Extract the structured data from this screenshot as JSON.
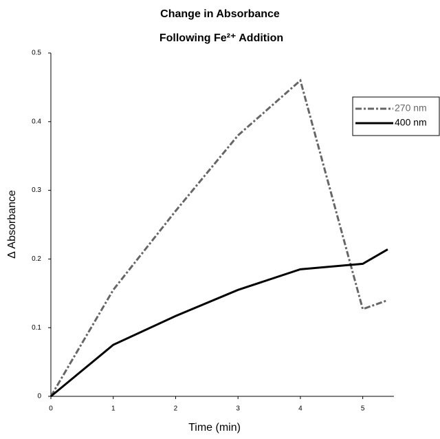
{
  "chart_data": {
    "type": "line",
    "title": [
      "Change in Absorbance",
      "Following Fe²⁺ Addition"
    ],
    "x_label": "Time (min)",
    "y_label": "Δ Absorbance",
    "x": [
      0,
      1,
      2,
      3,
      4,
      5,
      5.4
    ],
    "series": [
      {
        "name": "270 nm",
        "color": "#666666",
        "style": "dashdot",
        "values": [
          0,
          0.155,
          0.27,
          0.38,
          0.46,
          0.127,
          0.14
        ]
      },
      {
        "name": "400 nm",
        "color": "#000000",
        "style": "solid",
        "values": [
          0,
          0.075,
          0.117,
          0.155,
          0.185,
          0.193,
          0.214
        ]
      }
    ],
    "xlim": [
      0,
      5.5
    ],
    "xticks": [
      0,
      1,
      2,
      3,
      4,
      5
    ],
    "ylim": [
      0,
      0.5
    ],
    "yticks": [
      0,
      0.1,
      0.2,
      0.3,
      0.4,
      0.5
    ],
    "grid": false,
    "legend": "top-right"
  }
}
